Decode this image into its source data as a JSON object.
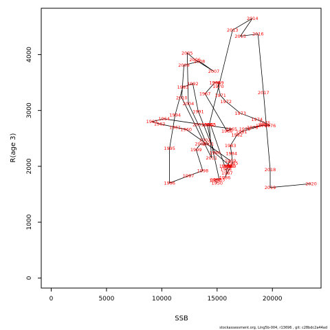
{
  "chart_data": {
    "type": "line",
    "title": "",
    "xlabel": "SSB",
    "ylabel": "R(age 3)",
    "xlim": [
      -900,
      24400
    ],
    "ylim": [
      -180,
      4830
    ],
    "x_ticks": [
      0,
      5000,
      10000,
      15000,
      20000
    ],
    "y_ticks": [
      0,
      1000,
      2000,
      3000,
      4000
    ],
    "grid": false,
    "legend": "none",
    "line_color": "#000000",
    "label_color": "#ff0000",
    "footer": "stockassessment.org, Ling5b-004, r13696 , git: c28bdc2a44ad",
    "points": [
      {
        "year": "1950",
        "ssb": 15000,
        "r": 1700
      },
      {
        "year": "1951",
        "ssb": 14800,
        "r": 1750
      },
      {
        "year": "1952",
        "ssb": 14900,
        "r": 1760
      },
      {
        "year": "1953",
        "ssb": 15200,
        "r": 1760
      },
      {
        "year": "1954",
        "ssb": 14100,
        "r": 2750
      },
      {
        "year": "1955",
        "ssb": 14400,
        "r": 2750
      },
      {
        "year": "1956",
        "ssb": 15700,
        "r": 2000
      },
      {
        "year": "1957",
        "ssb": 16100,
        "r": 2000
      },
      {
        "year": "1958",
        "ssb": 15900,
        "r": 2000
      },
      {
        "year": "1959",
        "ssb": 16200,
        "r": 2100
      },
      {
        "year": "1960",
        "ssb": 12200,
        "r": 2660
      },
      {
        "year": "1961",
        "ssb": 11200,
        "r": 2700
      },
      {
        "year": "1962",
        "ssb": 9800,
        "r": 2760
      },
      {
        "year": "1963",
        "ssb": 9100,
        "r": 2800
      },
      {
        "year": "1964",
        "ssb": 10200,
        "r": 2850
      },
      {
        "year": "1965",
        "ssb": 16300,
        "r": 2670
      },
      {
        "year": "1966",
        "ssb": 15900,
        "r": 2630
      },
      {
        "year": "1967",
        "ssb": 13900,
        "r": 3300
      },
      {
        "year": "1968",
        "ssb": 14800,
        "r": 3500
      },
      {
        "year": "1969",
        "ssb": 15100,
        "r": 3500
      },
      {
        "year": "1970",
        "ssb": 15100,
        "r": 3430
      },
      {
        "year": "1971",
        "ssb": 15300,
        "r": 3270
      },
      {
        "year": "1972",
        "ssb": 15800,
        "r": 3160
      },
      {
        "year": "1973",
        "ssb": 17100,
        "r": 2950
      },
      {
        "year": "1974",
        "ssb": 18600,
        "r": 2840
      },
      {
        "year": "1975",
        "ssb": 19300,
        "r": 2780
      },
      {
        "year": "1976",
        "ssb": 19800,
        "r": 2730
      },
      {
        "year": "1977",
        "ssb": 19000,
        "r": 2730
      },
      {
        "year": "1978",
        "ssb": 18200,
        "r": 2700
      },
      {
        "year": "1979",
        "ssb": 17500,
        "r": 2670
      },
      {
        "year": "1980",
        "ssb": 19200,
        "r": 2740
      },
      {
        "year": "1981",
        "ssb": 17200,
        "r": 2620
      },
      {
        "year": "1982",
        "ssb": 16800,
        "r": 2560
      },
      {
        "year": "1983",
        "ssb": 16200,
        "r": 2370
      },
      {
        "year": "1984",
        "ssb": 16300,
        "r": 2230
      },
      {
        "year": "1985",
        "ssb": 16400,
        "r": 2060
      },
      {
        "year": "1986",
        "ssb": 15700,
        "r": 1800
      },
      {
        "year": "1987",
        "ssb": 15900,
        "r": 1880
      },
      {
        "year": "1988",
        "ssb": 15800,
        "r": 1950
      },
      {
        "year": "1989",
        "ssb": 16200,
        "r": 2000
      },
      {
        "year": "1990",
        "ssb": 14800,
        "r": 2240
      },
      {
        "year": "1991",
        "ssb": 13300,
        "r": 2980
      },
      {
        "year": "1992",
        "ssb": 12800,
        "r": 3480
      },
      {
        "year": "1993",
        "ssb": 11900,
        "r": 3420
      },
      {
        "year": "1994",
        "ssb": 11200,
        "r": 2920
      },
      {
        "year": "1995",
        "ssb": 10700,
        "r": 2320
      },
      {
        "year": "1996",
        "ssb": 10700,
        "r": 1700
      },
      {
        "year": "1997",
        "ssb": 12400,
        "r": 1830
      },
      {
        "year": "1998",
        "ssb": 13700,
        "r": 1920
      },
      {
        "year": "1999",
        "ssb": 13100,
        "r": 2300
      },
      {
        "year": "2000",
        "ssb": 13500,
        "r": 2400
      },
      {
        "year": "2001",
        "ssb": 14200,
        "r": 2400
      },
      {
        "year": "2002",
        "ssb": 13900,
        "r": 2470
      },
      {
        "year": "2003",
        "ssb": 13300,
        "r": 2750
      },
      {
        "year": "2004",
        "ssb": 12400,
        "r": 3120
      },
      {
        "year": "2005",
        "ssb": 12300,
        "r": 4030
      },
      {
        "year": "2006",
        "ssb": 13000,
        "r": 3910
      },
      {
        "year": "2007",
        "ssb": 14700,
        "r": 3700
      },
      {
        "year": "2008",
        "ssb": 13400,
        "r": 3880
      },
      {
        "year": "2009",
        "ssb": 12000,
        "r": 3810
      },
      {
        "year": "2010",
        "ssb": 11800,
        "r": 3230
      },
      {
        "year": "2011",
        "ssb": 14500,
        "r": 2150
      },
      {
        "year": "2012",
        "ssb": 14300,
        "r": 2750
      },
      {
        "year": "2013",
        "ssb": 16400,
        "r": 4440
      },
      {
        "year": "2014",
        "ssb": 18200,
        "r": 4650
      },
      {
        "year": "2015",
        "ssb": 17100,
        "r": 4330
      },
      {
        "year": "2016",
        "ssb": 18700,
        "r": 4370
      },
      {
        "year": "2017",
        "ssb": 19200,
        "r": 3320
      },
      {
        "year": "2018",
        "ssb": 19800,
        "r": 1940
      },
      {
        "year": "2019",
        "ssb": 19800,
        "r": 1620
      },
      {
        "year": "2020",
        "ssb": 23500,
        "r": 1690
      }
    ]
  }
}
